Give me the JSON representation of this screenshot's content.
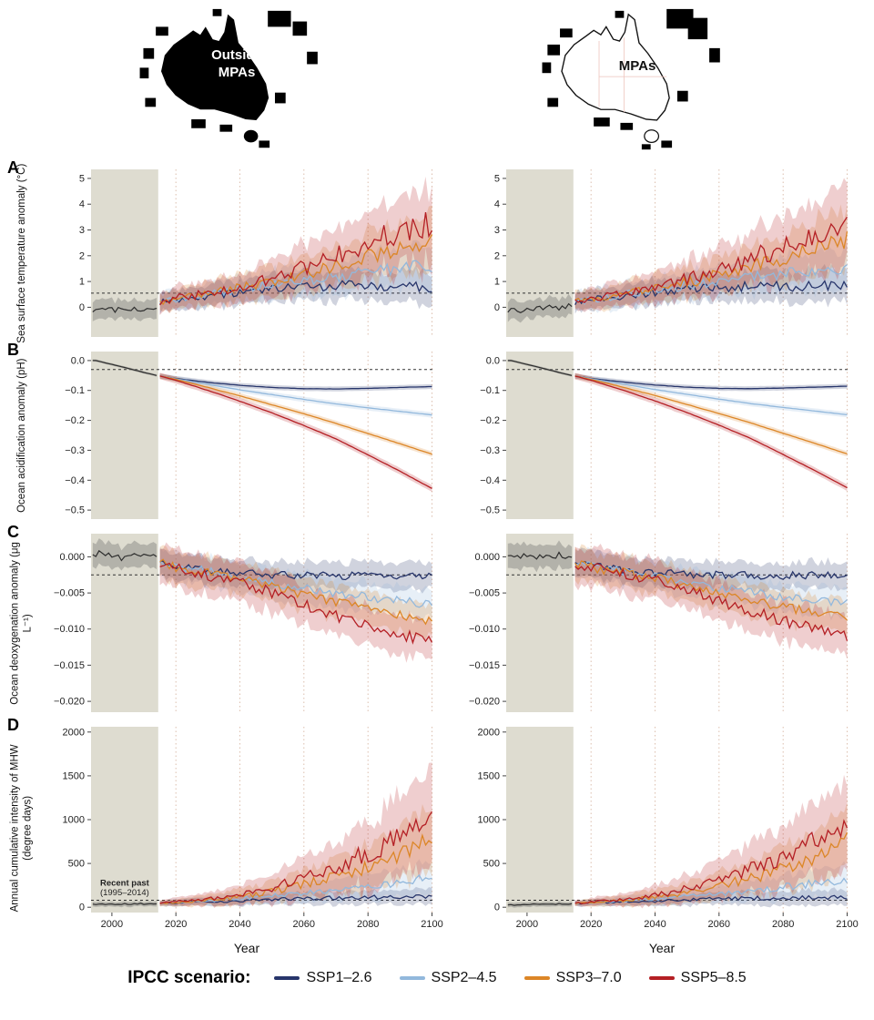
{
  "maps": {
    "outside_line1": "Outside",
    "outside_line2": "MPAs",
    "mpas_label": "MPAs"
  },
  "legend": {
    "title": "IPCC scenario:"
  },
  "chart_data": {
    "type": "line",
    "xlabel": "Year",
    "x_range": [
      1993.5,
      2101
    ],
    "hist_end": 2014.5,
    "x_years_hist": [
      1995,
      2000,
      2005,
      2010,
      2014
    ],
    "x_years_scen": [
      2015,
      2020,
      2030,
      2040,
      2050,
      2060,
      2070,
      2080,
      2090,
      2100
    ],
    "xticks": [
      2000,
      2020,
      2040,
      2060,
      2080,
      2100
    ],
    "grid_years": [
      2020,
      2040,
      2060,
      2080,
      2100
    ],
    "colors": {
      "hist_bg": "#dedcd0",
      "grid": "#dcbfae",
      "historical": "#2e2e2e",
      "historical_band": "#90908a",
      "ref_line": "#333333"
    },
    "scenarios": [
      {
        "key": "ssp126",
        "label": "SSP1–2.6",
        "color": "#27356b"
      },
      {
        "key": "ssp245",
        "label": "SSP2–4.5",
        "color": "#92b8dc"
      },
      {
        "key": "ssp370",
        "label": "SSP3–7.0",
        "color": "#dc8627"
      },
      {
        "key": "ssp585",
        "label": "SSP5–8.5",
        "color": "#b41f24"
      }
    ],
    "column_titles": [
      "Outside MPAs",
      "MPAs"
    ],
    "panels": [
      {
        "id": "A",
        "ylabel": "Sea surface temperature anomaly (°C)",
        "ylim": [
          -1.15,
          5.35
        ],
        "yticks": [
          0,
          1,
          2,
          3,
          4,
          5
        ],
        "ytick_labels": [
          "0",
          "1",
          "2",
          "3",
          "4",
          "5"
        ],
        "ref": 0.55,
        "jitter": 0.35,
        "columns": {
          "outside": {
            "hist": {
              "mean": [
                -0.15,
                -0.1,
                0.0,
                -0.08,
                0.05
              ],
              "band": 0.35
            },
            "ssp126": {
              "mean": [
                0.2,
                0.3,
                0.45,
                0.6,
                0.72,
                0.8,
                0.85,
                0.82,
                0.86,
                0.8
              ],
              "band": [
                0.35,
                0.38,
                0.42,
                0.46,
                0.5,
                0.55,
                0.57,
                0.6,
                0.6,
                0.62
              ]
            },
            "ssp245": {
              "mean": [
                0.2,
                0.3,
                0.5,
                0.68,
                0.88,
                1.05,
                1.2,
                1.35,
                1.5,
                1.65
              ],
              "band": [
                0.35,
                0.38,
                0.45,
                0.5,
                0.55,
                0.6,
                0.65,
                0.7,
                0.75,
                0.8
              ]
            },
            "ssp370": {
              "mean": [
                0.2,
                0.32,
                0.52,
                0.75,
                1.0,
                1.3,
                1.62,
                1.95,
                2.3,
                2.7
              ],
              "band": [
                0.35,
                0.4,
                0.45,
                0.52,
                0.6,
                0.7,
                0.8,
                0.92,
                1.05,
                1.15
              ]
            },
            "ssp585": {
              "mean": [
                0.2,
                0.35,
                0.55,
                0.82,
                1.15,
                1.55,
                2.0,
                2.5,
                2.95,
                3.3
              ],
              "band": [
                0.35,
                0.42,
                0.5,
                0.6,
                0.72,
                0.88,
                1.05,
                1.25,
                1.4,
                1.55
              ]
            }
          },
          "mpas": {
            "hist": {
              "mean": [
                -0.12,
                -0.1,
                0.02,
                -0.06,
                0.05
              ],
              "band": 0.35
            },
            "ssp126": {
              "mean": [
                0.2,
                0.3,
                0.44,
                0.58,
                0.7,
                0.78,
                0.82,
                0.8,
                0.84,
                0.82
              ],
              "band": [
                0.35,
                0.38,
                0.42,
                0.46,
                0.5,
                0.55,
                0.57,
                0.6,
                0.6,
                0.62
              ]
            },
            "ssp245": {
              "mean": [
                0.2,
                0.3,
                0.48,
                0.66,
                0.85,
                1.0,
                1.15,
                1.3,
                1.45,
                1.6
              ],
              "band": [
                0.35,
                0.38,
                0.45,
                0.5,
                0.55,
                0.6,
                0.65,
                0.7,
                0.75,
                0.8
              ]
            },
            "ssp370": {
              "mean": [
                0.2,
                0.3,
                0.5,
                0.72,
                0.96,
                1.25,
                1.55,
                1.85,
                2.2,
                2.55
              ],
              "band": [
                0.35,
                0.4,
                0.45,
                0.52,
                0.6,
                0.7,
                0.8,
                0.92,
                1.05,
                1.15
              ]
            },
            "ssp585": {
              "mean": [
                0.2,
                0.33,
                0.52,
                0.78,
                1.1,
                1.48,
                1.9,
                2.35,
                2.75,
                3.1
              ],
              "band": [
                0.35,
                0.42,
                0.5,
                0.6,
                0.72,
                0.88,
                1.05,
                1.25,
                1.4,
                1.55
              ]
            }
          }
        }
      },
      {
        "id": "B",
        "ylabel": "Ocean acidification anomaly (pH)",
        "ylim": [
          -0.53,
          0.03
        ],
        "yticks": [
          0,
          -0.1,
          -0.2,
          -0.3,
          -0.4,
          -0.5
        ],
        "ytick_labels": [
          "0.0",
          "−0.1",
          "−0.2",
          "−0.3",
          "−0.4",
          "−0.5"
        ],
        "ref": -0.03,
        "jitter": 0.04,
        "columns": {
          "outside": {
            "hist": {
              "mean": [
                0.0,
                -0.013,
                -0.026,
                -0.04,
                -0.05
              ],
              "band": 0.004
            },
            "ssp126": {
              "mean": [
                -0.052,
                -0.06,
                -0.073,
                -0.083,
                -0.09,
                -0.094,
                -0.095,
                -0.093,
                -0.09,
                -0.087
              ],
              "band": 0.008
            },
            "ssp245": {
              "mean": [
                -0.052,
                -0.061,
                -0.08,
                -0.098,
                -0.114,
                -0.13,
                -0.145,
                -0.158,
                -0.17,
                -0.182
              ],
              "band": 0.009
            },
            "ssp370": {
              "mean": [
                -0.052,
                -0.063,
                -0.09,
                -0.118,
                -0.148,
                -0.178,
                -0.21,
                -0.244,
                -0.278,
                -0.313
              ],
              "band": 0.009
            },
            "ssp585": {
              "mean": [
                -0.052,
                -0.066,
                -0.1,
                -0.136,
                -0.175,
                -0.217,
                -0.262,
                -0.315,
                -0.37,
                -0.428
              ],
              "band": 0.011
            }
          },
          "mpas": {
            "hist": {
              "mean": [
                0.0,
                -0.013,
                -0.026,
                -0.04,
                -0.05
              ],
              "band": 0.004
            },
            "ssp126": {
              "mean": [
                -0.052,
                -0.06,
                -0.072,
                -0.082,
                -0.089,
                -0.093,
                -0.094,
                -0.092,
                -0.089,
                -0.086
              ],
              "band": 0.008
            },
            "ssp245": {
              "mean": [
                -0.052,
                -0.061,
                -0.079,
                -0.097,
                -0.113,
                -0.129,
                -0.144,
                -0.157,
                -0.169,
                -0.181
              ],
              "band": 0.009
            },
            "ssp370": {
              "mean": [
                -0.052,
                -0.063,
                -0.089,
                -0.117,
                -0.147,
                -0.177,
                -0.209,
                -0.243,
                -0.277,
                -0.312
              ],
              "band": 0.009
            },
            "ssp585": {
              "mean": [
                -0.052,
                -0.066,
                -0.099,
                -0.135,
                -0.174,
                -0.216,
                -0.261,
                -0.314,
                -0.368,
                -0.425
              ],
              "band": 0.011
            }
          }
        }
      },
      {
        "id": "C",
        "ylabel": "Ocean deoxygenation anomaly (μg L⁻¹)",
        "ylim": [
          -0.0215,
          0.0032
        ],
        "yticks": [
          0,
          -0.005,
          -0.01,
          -0.015,
          -0.02
        ],
        "ytick_labels": [
          "0.000",
          "−0.005",
          "−0.010",
          "−0.015",
          "−0.020"
        ],
        "ref": -0.0025,
        "jitter": 0.3,
        "columns": {
          "outside": {
            "hist": {
              "mean": [
                0.0005,
                0.0,
                -0.0003,
                0.0004,
                0.0
              ],
              "band": 0.0016
            },
            "ssp126": {
              "mean": [
                -0.0008,
                -0.0012,
                -0.0018,
                -0.0023,
                -0.0025,
                -0.0026,
                -0.0026,
                -0.0027,
                -0.0026,
                -0.0027
              ],
              "band": 0.0018
            },
            "ssp245": {
              "mean": [
                -0.0008,
                -0.0013,
                -0.002,
                -0.0028,
                -0.0036,
                -0.0043,
                -0.005,
                -0.0056,
                -0.0061,
                -0.0066
              ],
              "band": 0.002
            },
            "ssp370": {
              "mean": [
                -0.0008,
                -0.0014,
                -0.0022,
                -0.0031,
                -0.0041,
                -0.0052,
                -0.0062,
                -0.0072,
                -0.0081,
                -0.0089
              ],
              "band": 0.0022
            },
            "ssp585": {
              "mean": [
                -0.0008,
                -0.0015,
                -0.0025,
                -0.0036,
                -0.005,
                -0.0066,
                -0.0081,
                -0.0096,
                -0.0108,
                -0.0118
              ],
              "band": 0.0027
            }
          },
          "mpas": {
            "hist": {
              "mean": [
                0.0005,
                0.0,
                -0.0002,
                0.0004,
                0.0
              ],
              "band": 0.0016
            },
            "ssp126": {
              "mean": [
                -0.0008,
                -0.0012,
                -0.0018,
                -0.0022,
                -0.0024,
                -0.0025,
                -0.0026,
                -0.0026,
                -0.0026,
                -0.0027
              ],
              "band": 0.0018
            },
            "ssp245": {
              "mean": [
                -0.0008,
                -0.0013,
                -0.002,
                -0.0027,
                -0.0035,
                -0.0042,
                -0.0049,
                -0.0055,
                -0.006,
                -0.0064
              ],
              "band": 0.002
            },
            "ssp370": {
              "mean": [
                -0.0008,
                -0.0014,
                -0.0022,
                -0.003,
                -0.004,
                -0.005,
                -0.006,
                -0.0069,
                -0.0078,
                -0.0085
              ],
              "band": 0.0022
            },
            "ssp585": {
              "mean": [
                -0.0008,
                -0.0014,
                -0.0024,
                -0.0034,
                -0.0047,
                -0.0061,
                -0.0075,
                -0.0089,
                -0.01,
                -0.011
              ],
              "band": 0.0027
            }
          }
        }
      },
      {
        "id": "D",
        "ylabel": "Annual cumulative intensity of MHW (degree days)",
        "ylim": [
          -60,
          2060
        ],
        "yticks": [
          0,
          500,
          1000,
          1500,
          2000
        ],
        "ytick_labels": [
          "0",
          "500",
          "1000",
          "1500",
          "2000"
        ],
        "ref": 80,
        "jitter": 0.3,
        "annotation": {
          "column": "outside",
          "line1": "Recent past",
          "line2": "(1995–2014)",
          "year": 2004,
          "v1": 245,
          "v2": 135
        },
        "columns": {
          "outside": {
            "hist": {
              "mean": [
                30,
                35,
                40,
                38,
                42
              ],
              "band": 28
            },
            "ssp126": {
              "mean": [
                45,
                52,
                62,
                75,
                90,
                100,
                108,
                112,
                116,
                120
              ],
              "band": [
                30,
                35,
                42,
                52,
                62,
                70,
                76,
                80,
                84,
                88
              ]
            },
            "ssp245": {
              "mean": [
                45,
                55,
                75,
                100,
                132,
                165,
                202,
                242,
                285,
                335
              ],
              "band": [
                30,
                40,
                52,
                66,
                82,
                102,
                122,
                144,
                164,
                186
              ]
            },
            "ssp370": {
              "mean": [
                45,
                56,
                82,
                122,
                182,
                262,
                352,
                462,
                605,
                790
              ],
              "band": [
                30,
                42,
                62,
                92,
                122,
                162,
                212,
                262,
                312,
                365
              ]
            },
            "ssp585": {
              "mean": [
                45,
                60,
                92,
                142,
                222,
                332,
                462,
                625,
                800,
                985
              ],
              "band": [
                30,
                46,
                72,
                112,
                162,
                225,
                295,
                375,
                455,
                545
              ]
            }
          },
          "mpas": {
            "hist": {
              "mean": [
                28,
                33,
                38,
                36,
                40
              ],
              "band": 26
            },
            "ssp126": {
              "mean": [
                45,
                50,
                60,
                72,
                86,
                96,
                104,
                108,
                112,
                116
              ],
              "band": [
                30,
                35,
                42,
                52,
                62,
                70,
                76,
                80,
                84,
                88
              ]
            },
            "ssp245": {
              "mean": [
                45,
                54,
                72,
                96,
                125,
                158,
                192,
                230,
                272,
                320
              ],
              "band": [
                30,
                40,
                52,
                66,
                82,
                100,
                120,
                140,
                160,
                182
              ]
            },
            "ssp370": {
              "mean": [
                45,
                54,
                78,
                115,
                170,
                245,
                330,
                435,
                570,
                750
              ],
              "band": [
                30,
                42,
                60,
                88,
                118,
                156,
                205,
                252,
                300,
                352
              ]
            },
            "ssp585": {
              "mean": [
                45,
                58,
                88,
                135,
                210,
                310,
                430,
                580,
                760,
                950
              ],
              "band": [
                30,
                45,
                70,
                108,
                155,
                215,
                282,
                360,
                438,
                525
              ]
            }
          }
        }
      }
    ]
  }
}
